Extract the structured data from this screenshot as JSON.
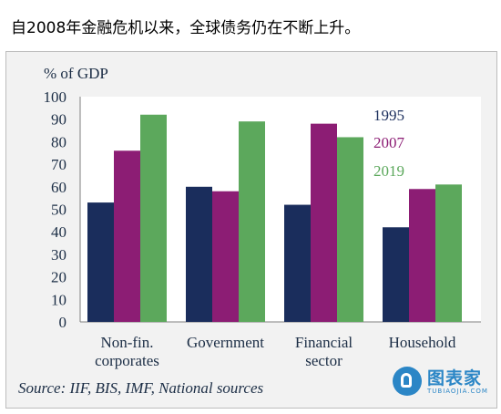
{
  "header": {
    "title": "自2008年金融危机以来，全球债务仍在不断上升。"
  },
  "chart_data": {
    "type": "bar",
    "title": "",
    "ylabel": "% of GDP",
    "xlabel": "",
    "ylim": [
      0,
      100
    ],
    "yticks": [
      0,
      10,
      20,
      30,
      40,
      50,
      60,
      70,
      80,
      90,
      100
    ],
    "categories": [
      [
        "Non-fin.",
        "corporates"
      ],
      [
        "Government"
      ],
      [
        "Financial",
        "sector"
      ],
      [
        "Household"
      ]
    ],
    "series": [
      {
        "name": "1995",
        "color": "#1a2d5c",
        "values": [
          53,
          60,
          52,
          42
        ]
      },
      {
        "name": "2007",
        "color": "#8c1d74",
        "values": [
          76,
          58,
          88,
          59
        ]
      },
      {
        "name": "2019",
        "color": "#5ca85c",
        "values": [
          92,
          89,
          82,
          61
        ]
      }
    ],
    "legend_placement": "right",
    "grid": false
  },
  "source": "Source: IIF, BIS, IMF, National sources",
  "brand": {
    "name": "图表家",
    "sub": "TUBIAOJIA.COM"
  }
}
